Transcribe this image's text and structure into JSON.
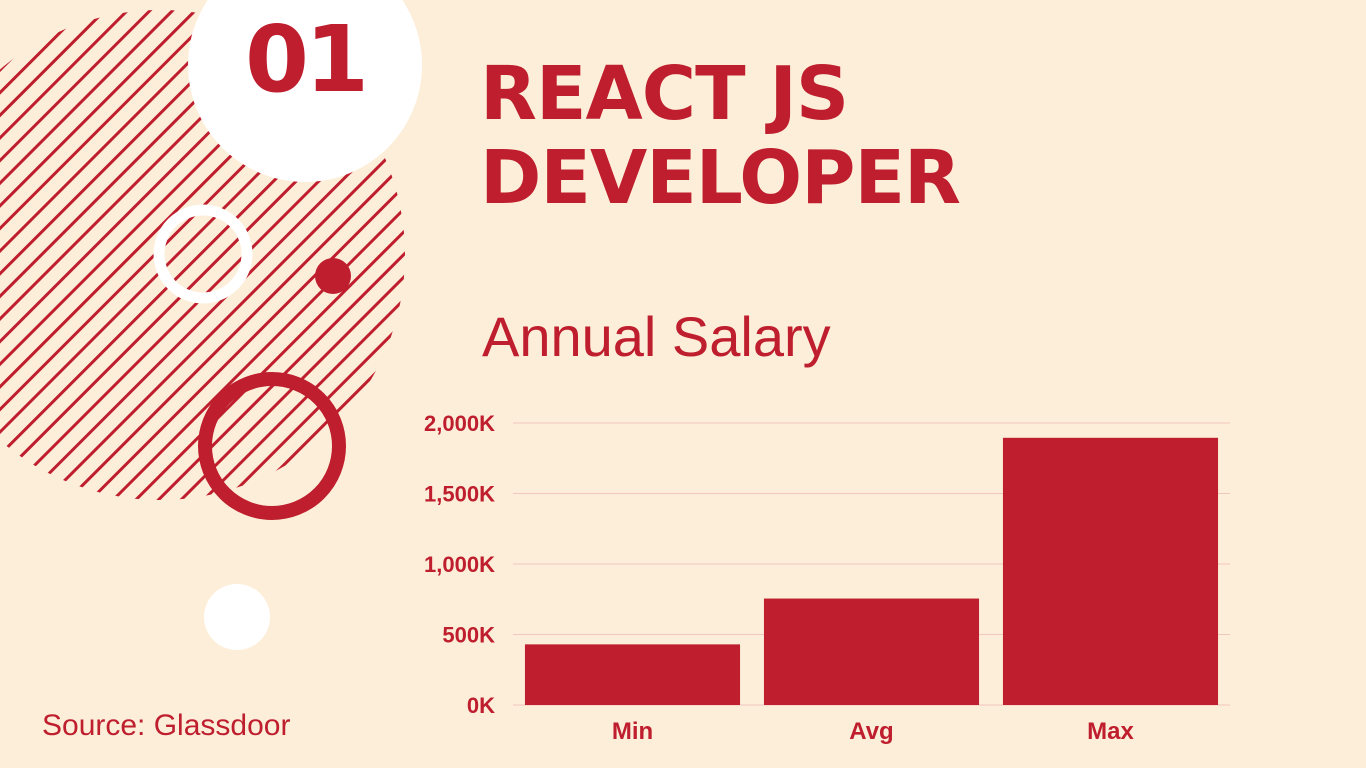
{
  "slide": {
    "number": "01",
    "title_lines": [
      "REACT JS",
      "DEVELOPER"
    ],
    "source": "Source: Glassdoor"
  },
  "colors": {
    "background": "#fdeed9",
    "accent": "#be1e2d",
    "white": "#ffffff",
    "gridline": "#f2c7bf"
  },
  "chart_data": {
    "type": "bar",
    "title": "Annual Salary",
    "categories": [
      "Min",
      "Avg",
      "Max"
    ],
    "values": [
      430,
      755,
      1895
    ],
    "ylim": [
      0,
      2000
    ],
    "yticks": [
      0,
      500,
      1000,
      1500,
      2000
    ],
    "ytick_labels": [
      "0K",
      "500K",
      "1,000K",
      "1,500K",
      "2,000K"
    ],
    "grid": true,
    "xlabel": "",
    "ylabel": ""
  }
}
